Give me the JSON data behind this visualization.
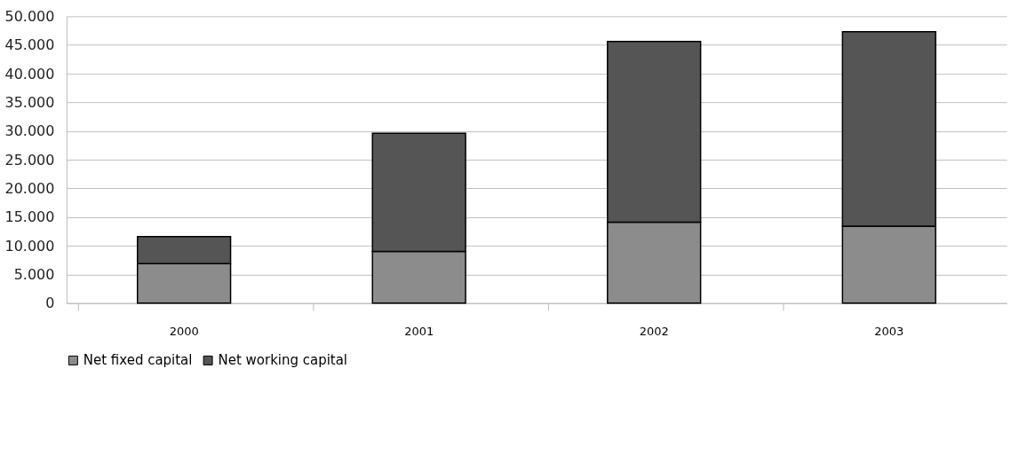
{
  "chart_data": {
    "type": "bar",
    "stacked": true,
    "categories": [
      "2000",
      "2001",
      "2002",
      "2003"
    ],
    "series": [
      {
        "name": "Net fixed capital",
        "color": "#8c8c8c",
        "values": [
          6900,
          9000,
          14100,
          13400
        ]
      },
      {
        "name": "Net working capital",
        "color": "#555555",
        "values": [
          4700,
          20600,
          31500,
          33900
        ]
      }
    ],
    "ylim": [
      0,
      50000
    ],
    "yticks": [
      0,
      {
        "value": 5000,
        "label": "5.000"
      },
      {
        "value": 10000,
        "label": "10.000"
      },
      {
        "value": 15000,
        "label": "15.000"
      },
      {
        "value": 20000,
        "label": "20.000"
      },
      {
        "value": 25000,
        "label": "25.000"
      },
      {
        "value": 30000,
        "label": "30.000"
      },
      {
        "value": 35000,
        "label": "35.000"
      },
      {
        "value": 40000,
        "label": "40.000"
      },
      {
        "value": 45000,
        "label": "45.000"
      },
      {
        "value": 50000,
        "label": "50.000"
      }
    ],
    "grid": "y",
    "legend": "bottom"
  }
}
